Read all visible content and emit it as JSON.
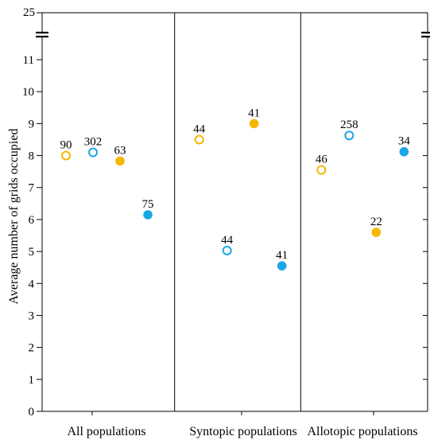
{
  "chart_data": {
    "type": "scatter",
    "ylabel": "Average number of grids occupied",
    "ylim": [
      0,
      11.5
    ],
    "y_break_label": "25",
    "yticks": [
      0,
      1,
      2,
      3,
      4,
      5,
      6,
      7,
      8,
      9,
      10,
      11
    ],
    "groups": [
      "All populations",
      "Syntopic populations",
      "Allotopic populations"
    ],
    "colors": {
      "orange": "#f5b800",
      "blue": "#1aa7e6"
    },
    "points": [
      {
        "group": 0,
        "slot": 0,
        "value": 8.0,
        "n": "90",
        "color": "orange",
        "filled": false
      },
      {
        "group": 0,
        "slot": 1,
        "value": 8.1,
        "n": "302",
        "color": "blue",
        "filled": false
      },
      {
        "group": 0,
        "slot": 2,
        "value": 7.83,
        "n": "63",
        "color": "orange",
        "filled": true
      },
      {
        "group": 0,
        "slot": 3,
        "value": 6.15,
        "n": "75",
        "color": "blue",
        "filled": true
      },
      {
        "group": 1,
        "slot": 0,
        "value": 8.5,
        "n": "44",
        "color": "orange",
        "filled": false
      },
      {
        "group": 1,
        "slot": 1,
        "value": 5.03,
        "n": "44",
        "color": "blue",
        "filled": false
      },
      {
        "group": 1,
        "slot": 2,
        "value": 9.0,
        "n": "41",
        "color": "orange",
        "filled": true
      },
      {
        "group": 1,
        "slot": 3,
        "value": 4.55,
        "n": "41",
        "color": "blue",
        "filled": true
      },
      {
        "group": 2,
        "slot": 0,
        "value": 7.55,
        "n": "46",
        "color": "orange",
        "filled": false
      },
      {
        "group": 2,
        "slot": 1,
        "value": 8.63,
        "n": "258",
        "color": "blue",
        "filled": false
      },
      {
        "group": 2,
        "slot": 2,
        "value": 5.6,
        "n": "22",
        "color": "orange",
        "filled": true
      },
      {
        "group": 2,
        "slot": 3,
        "value": 8.12,
        "n": "34",
        "color": "blue",
        "filled": true
      }
    ]
  }
}
